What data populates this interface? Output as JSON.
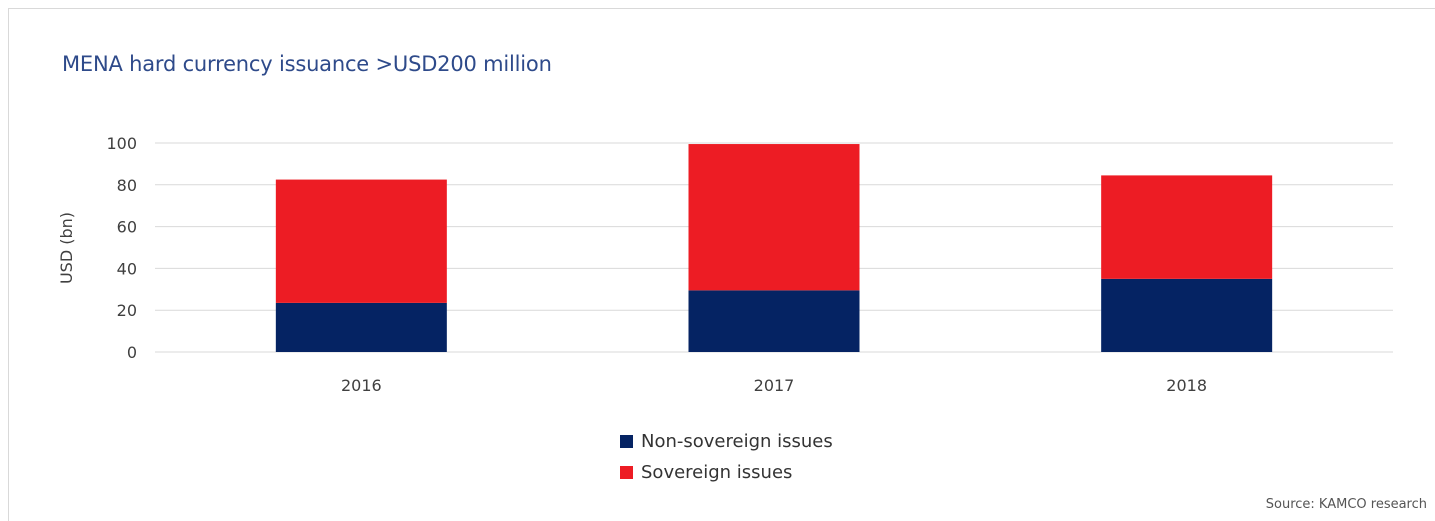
{
  "chart_data": {
    "type": "bar",
    "stacked": true,
    "title": "MENA hard currency issuance >USD200 million",
    "ylabel": "USD (bn)",
    "xlabel": "",
    "categories": [
      "2016",
      "2017",
      "2018"
    ],
    "ylim": [
      0,
      100
    ],
    "yticks": [
      "0",
      "20",
      "40",
      "60",
      "80",
      "100"
    ],
    "grid": true,
    "legend_placement": "bottom-center",
    "series": [
      {
        "name": "Non-sovereign issues",
        "values": [
          23.5,
          29.5,
          35
        ],
        "color": "#052363"
      },
      {
        "name": "Sovereign issues",
        "values": [
          59,
          70,
          49.5
        ],
        "color": "#ed1c24"
      }
    ]
  },
  "footer": {
    "source": "Source: KAMCO research"
  }
}
